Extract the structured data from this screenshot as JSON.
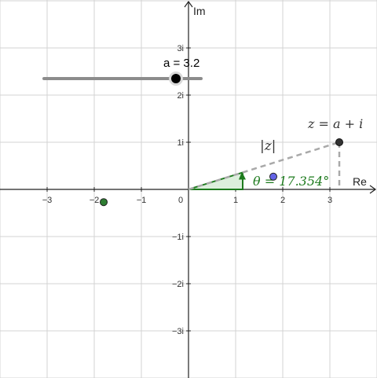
{
  "graph": {
    "x_axis_label": "Re",
    "y_axis_label": "Im",
    "x_ticks": [
      {
        "value": -3,
        "label": "−3"
      },
      {
        "value": -2,
        "label": "−2"
      },
      {
        "value": -1,
        "label": "−1"
      },
      {
        "value": 0,
        "label": "0"
      },
      {
        "value": 1,
        "label": "1"
      },
      {
        "value": 2,
        "label": "2"
      },
      {
        "value": 3,
        "label": "3"
      }
    ],
    "y_ticks": [
      {
        "value": 3,
        "label": "3i"
      },
      {
        "value": 2,
        "label": "2i"
      },
      {
        "value": 1,
        "label": "1i"
      },
      {
        "value": -1,
        "label": "−1i"
      },
      {
        "value": -2,
        "label": "−2i"
      },
      {
        "value": -3,
        "label": "−3i"
      }
    ],
    "x_range": [
      -4,
      4
    ],
    "y_range": [
      -4,
      4
    ],
    "grid": true
  },
  "slider": {
    "label": "a = 3.2",
    "value": 3.2,
    "min": -5,
    "max": 5
  },
  "point_z": {
    "label": "z = a + i",
    "re": 3.2,
    "im": 1
  },
  "modulus_label": "|z|",
  "angle_label": "θ = 17.354°",
  "blue_point": {
    "re": 1.8,
    "im": 0.27
  },
  "green_point": {
    "re": -1.8,
    "im": -0.27
  },
  "colors": {
    "grid": "#d3d3d3",
    "axis": "#222222",
    "dashed": "#a9a9a9",
    "angle": "#1e7b1e",
    "angle_fill": "#dcefdc",
    "point_z": "#333333",
    "blue": "#6464e6",
    "green": "#2e7d32",
    "slider_track": "#8c8c8c",
    "slider_knob": "#000000"
  }
}
